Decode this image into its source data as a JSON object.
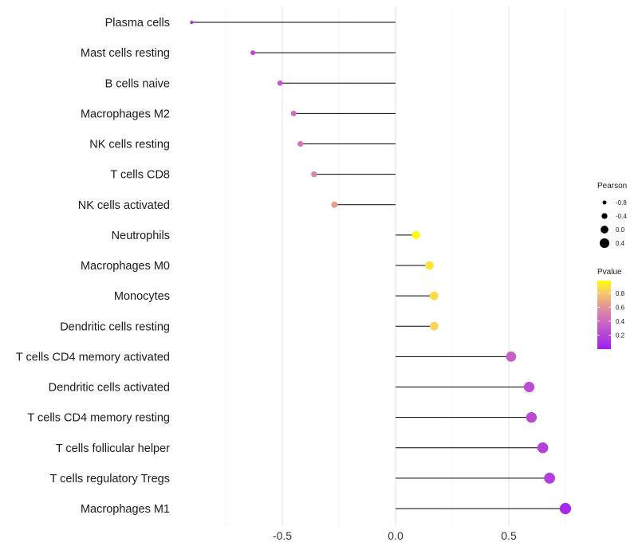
{
  "chart_data": {
    "type": "lollipop",
    "title": "",
    "xlabel": "",
    "ylabel": "",
    "xlim": [
      -0.95,
      0.78
    ],
    "xticks": [
      -0.5,
      0.0,
      0.5
    ],
    "xtick_labels": [
      "-0.5",
      "0.0",
      "0.5"
    ],
    "minor_gridlines": [
      -0.75,
      -0.25,
      0.25,
      0.75
    ],
    "grid": true,
    "categories": [
      "Plasma cells",
      "Mast cells resting",
      "B cells naive",
      "Macrophages M2",
      "NK cells resting",
      "T cells CD8",
      "NK cells activated",
      "Neutrophils",
      "Macrophages M0",
      "Monocytes",
      "Dendritic cells resting",
      "T cells CD4 memory activated",
      "Dendritic cells activated",
      "T cells CD4 memory resting",
      "T cells follicular helper",
      "T cells regulatory  Tregs ",
      "Macrophages M1"
    ],
    "pearson": [
      -0.9,
      -0.63,
      -0.51,
      -0.45,
      -0.42,
      -0.36,
      -0.27,
      0.09,
      0.15,
      0.17,
      0.17,
      0.51,
      0.59,
      0.6,
      0.65,
      0.68,
      0.75
    ],
    "pvalue": [
      0.1,
      0.22,
      0.32,
      0.42,
      0.45,
      0.55,
      0.66,
      0.96,
      0.89,
      0.87,
      0.85,
      0.36,
      0.26,
      0.24,
      0.18,
      0.18,
      0.05
    ],
    "legend": {
      "position": "right",
      "size": {
        "title": "Pearson",
        "values": [
          -0.8,
          -0.4,
          0.0,
          0.4
        ],
        "labels": [
          "-0.8",
          "-0.4",
          "0.0",
          "0.4"
        ]
      },
      "color": {
        "title": "Pvalue",
        "ticks": [
          0.2,
          0.4,
          0.6,
          0.8
        ],
        "labels": [
          "0.2",
          "0.4",
          "0.6",
          "0.8"
        ],
        "range": [
          0.0,
          0.98
        ],
        "low_color": "#a020f0",
        "mid_color": "#d07fba",
        "high_color": "#ffff00"
      }
    }
  }
}
